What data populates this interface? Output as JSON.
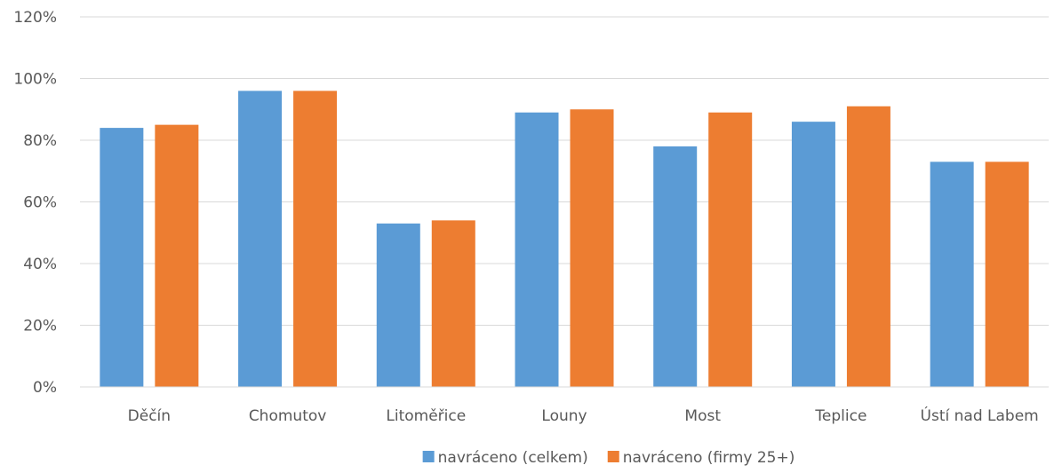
{
  "chart_data": {
    "type": "bar",
    "categories": [
      "Děčín",
      "Chomutov",
      "Litoměřice",
      "Louny",
      "Most",
      "Teplice",
      "Ústí nad Labem"
    ],
    "series": [
      {
        "name": "navráceno (celkem)",
        "color": "#5b9bd5",
        "values": [
          84,
          96,
          53,
          89,
          78,
          86,
          73
        ]
      },
      {
        "name": "navráceno (firmy 25+)",
        "color": "#ed7d31",
        "values": [
          85,
          96,
          54,
          90,
          89,
          91,
          73
        ]
      }
    ],
    "y_ticks": [
      "0%",
      "20%",
      "40%",
      "60%",
      "80%",
      "100%",
      "120%"
    ],
    "ylim": [
      0,
      120
    ],
    "y_unit": "%",
    "grid": true,
    "gridline_color": "#d9d9d9",
    "legend_position": "bottom"
  }
}
